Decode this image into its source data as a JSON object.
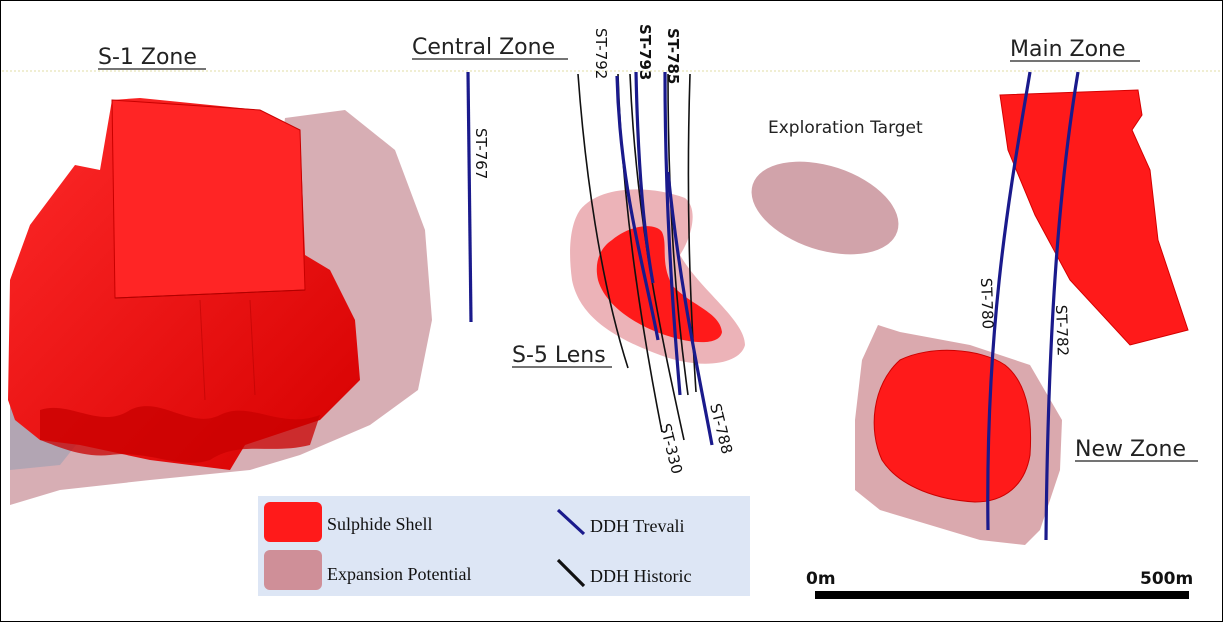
{
  "zones": {
    "s1": "S-1 Zone",
    "central": "Central Zone",
    "main": "Main Zone",
    "new": "New Zone",
    "s5": "S-5 Lens"
  },
  "exploration_target": "Exploration Target",
  "drill_holes": {
    "st767": "ST-767",
    "st792": "ST-792",
    "st793": "ST-793",
    "st785": "ST-785",
    "st330": "ST-330",
    "st788": "ST-788",
    "st780": "ST-780",
    "st782": "ST-782"
  },
  "legend": {
    "sulphide": "Sulphide Shell",
    "expansion": "Expansion Potential",
    "ddh_trevali": "DDH Trevali",
    "ddh_historic": "DDH Historic"
  },
  "scale": {
    "start": "0m",
    "end": "500m"
  },
  "colors": {
    "sulphide": "#ff1a1a",
    "expansion": "#d39aa0",
    "trevali": "#1a1a8c",
    "historic": "#111111",
    "legend_bg": "#dde6f5"
  }
}
